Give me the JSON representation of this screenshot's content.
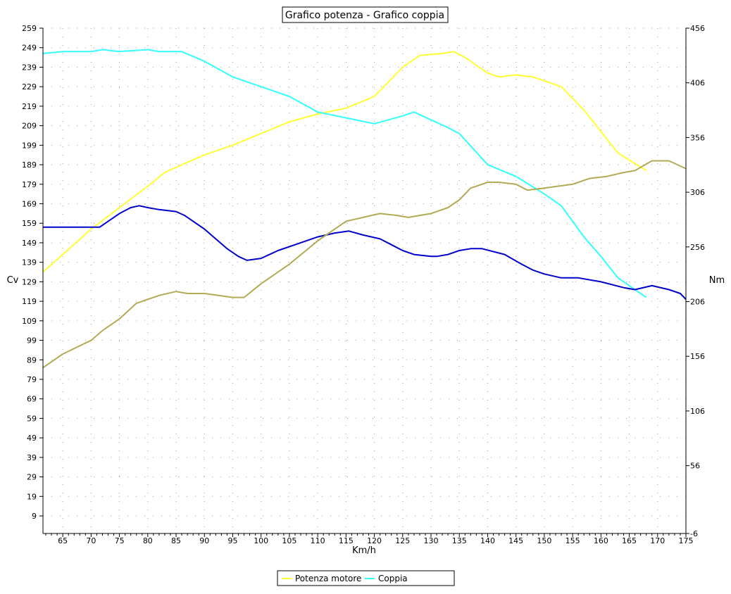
{
  "chart_data": {
    "type": "line",
    "title": "Grafico potenza - Grafico coppia",
    "xlabel": "Km/h",
    "ylabel_left": "Cv",
    "ylabel_right": "Nm",
    "xlim": [
      61.5,
      175
    ],
    "ylim_left": [
      0,
      259
    ],
    "ylim_right": [
      -6,
      456
    ],
    "x_ticks": [
      65,
      70,
      75,
      80,
      85,
      90,
      95,
      100,
      105,
      110,
      115,
      120,
      125,
      130,
      135,
      140,
      145,
      150,
      155,
      160,
      165,
      170,
      175
    ],
    "y_ticks_left": [
      9,
      19,
      29,
      39,
      49,
      59,
      69,
      79,
      89,
      99,
      109,
      119,
      129,
      139,
      149,
      159,
      169,
      179,
      189,
      199,
      209,
      219,
      229,
      239,
      249,
      259
    ],
    "y_ticks_right": [
      -6,
      56,
      106,
      156,
      206,
      256,
      306,
      356,
      406,
      456
    ],
    "grid": true,
    "legend_position": "bottom-center",
    "series": [
      {
        "name": "Potenza motore",
        "color": "#ffff33",
        "axis": "left",
        "x": [
          61.5,
          65,
          70,
          75,
          80,
          83,
          86,
          90,
          95,
          100,
          105,
          110,
          115,
          120,
          122,
          125,
          128,
          132,
          134,
          136,
          140,
          142,
          145,
          148,
          150,
          153,
          157,
          160,
          163,
          168
        ],
        "y": [
          134,
          143,
          156,
          167,
          178,
          185,
          189,
          194,
          199,
          205,
          211,
          215,
          218,
          224,
          230,
          239,
          245,
          246,
          247,
          244,
          236,
          234,
          235,
          234,
          232,
          229,
          217,
          206,
          195,
          186
        ]
      },
      {
        "name": "Coppia",
        "color": "#33ffff",
        "axis": "left",
        "x": [
          61.5,
          65,
          70,
          72,
          75,
          80,
          82,
          86,
          90,
          95,
          100,
          105,
          110,
          115,
          120,
          125,
          127,
          130,
          133,
          135,
          140,
          145,
          150,
          153,
          157,
          160,
          163,
          166,
          168
        ],
        "y": [
          246,
          247,
          247,
          248,
          247,
          248,
          247,
          247,
          242,
          234,
          229,
          224,
          216,
          213,
          210,
          214,
          216,
          212,
          208,
          205,
          189,
          183,
          174,
          168,
          152,
          142,
          131,
          125,
          121
        ]
      },
      {
        "name": "",
        "color": "#0000cc",
        "axis": "left",
        "x": [
          61.5,
          65,
          70,
          71.5,
          75,
          77,
          78.5,
          80,
          82,
          85,
          86.5,
          90,
          94,
          96,
          97.5,
          100,
          103,
          107,
          110,
          113,
          115.5,
          118,
          121,
          123,
          125,
          127,
          130,
          131,
          133,
          135,
          137,
          139,
          143,
          146,
          148,
          150,
          153,
          156,
          160,
          164,
          166,
          169,
          172,
          174,
          175
        ],
        "y": [
          157,
          157,
          157,
          157,
          164,
          167,
          168,
          167,
          166,
          165,
          163,
          156,
          146,
          142,
          140,
          141,
          145,
          149,
          152,
          154,
          155,
          153,
          151,
          148,
          145,
          143,
          142,
          142,
          143,
          145,
          146,
          146,
          143,
          138,
          135,
          133,
          131,
          131,
          129,
          126,
          125,
          127,
          125,
          123,
          120
        ]
      },
      {
        "name": "",
        "color": "#b3aa55",
        "axis": "left",
        "x": [
          61.5,
          65,
          70,
          72,
          75,
          78,
          82,
          85,
          87,
          90,
          95,
          97,
          100,
          105,
          110,
          115,
          118,
          121,
          124,
          126,
          128,
          130,
          133,
          135,
          137,
          140,
          142,
          145,
          147,
          150,
          155,
          158,
          161,
          164,
          166,
          169,
          172,
          175
        ],
        "y": [
          85,
          92,
          99,
          104,
          110,
          118,
          122,
          124,
          123,
          123,
          121,
          121,
          128,
          138,
          150,
          160,
          162,
          164,
          163,
          162,
          163,
          164,
          167,
          171,
          177,
          180,
          180,
          179,
          176,
          177,
          179,
          182,
          183,
          185,
          186,
          191,
          191,
          187
        ]
      }
    ]
  }
}
